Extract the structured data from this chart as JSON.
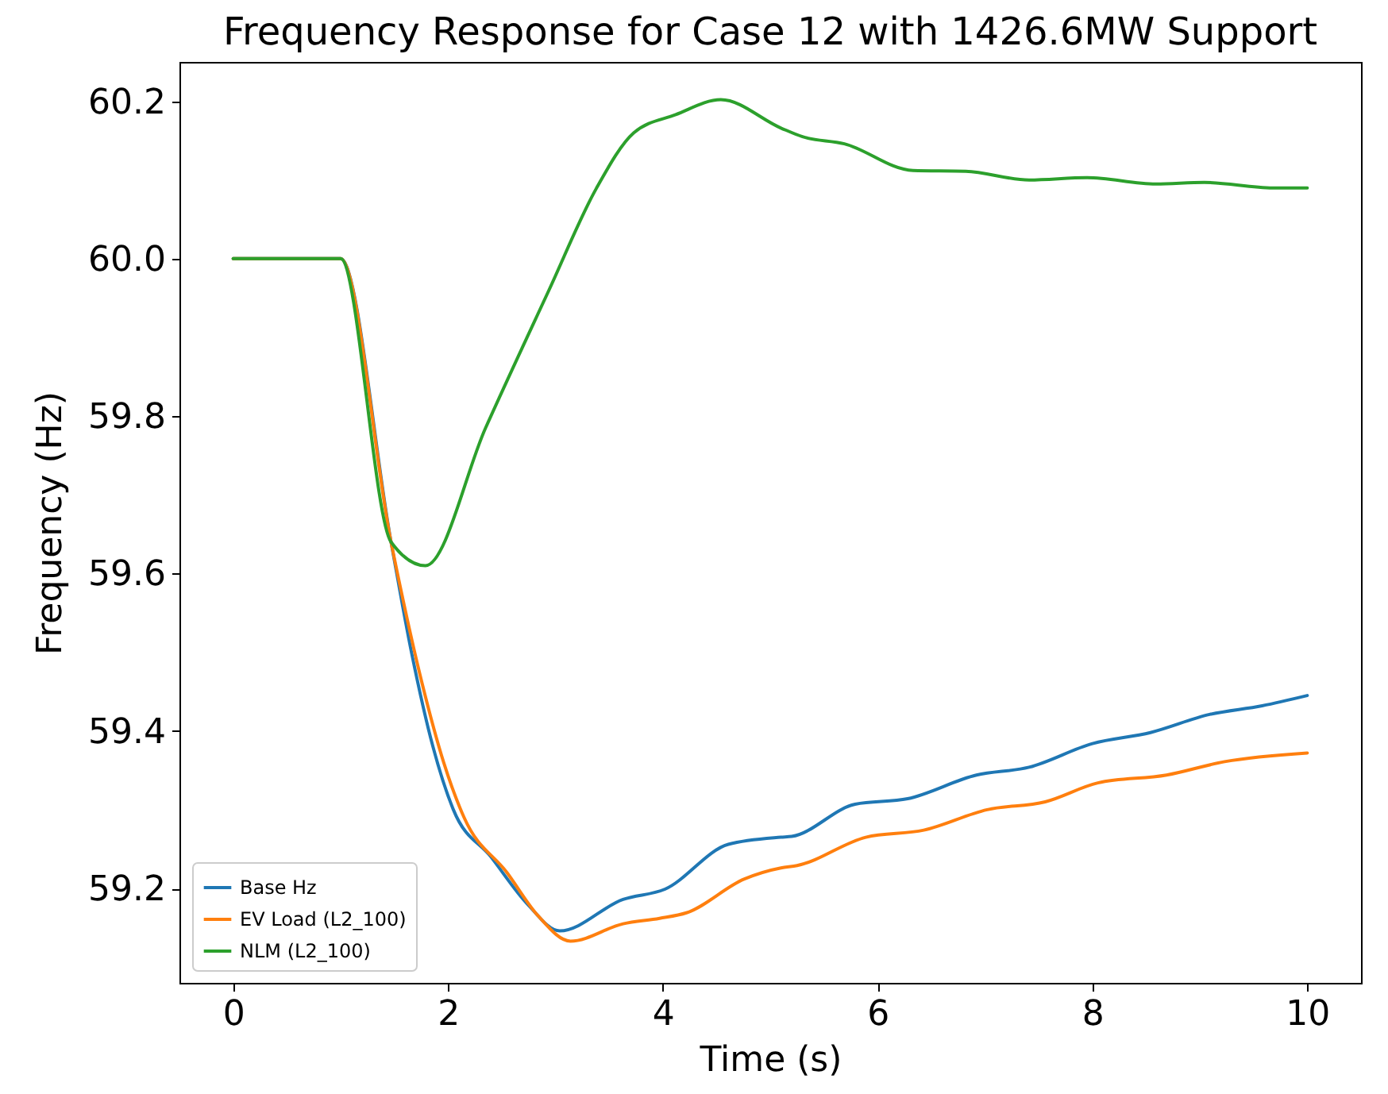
{
  "chart_data": {
    "type": "line",
    "title": "Frequency Response for Case 12 with 1426.6MW Support",
    "xlabel": "Time (s)",
    "ylabel": "Frequency (Hz)",
    "xlim": [
      -0.5,
      10.5
    ],
    "xticks": [
      0,
      2,
      4,
      6,
      8,
      10
    ],
    "ylim": [
      59.08,
      60.25
    ],
    "yticks": [
      59.2,
      59.4,
      59.6,
      59.8,
      {
        "value": 60,
        "label": "60.0"
      },
      60.2
    ],
    "grid": false,
    "legend": "bottom left",
    "line_style": "solid",
    "marker": "none",
    "series": [
      {
        "name": "Base Hz",
        "color": "#1f77b4",
        "x": [
          0,
          1,
          1.47,
          1.66,
          1.86,
          2.05,
          2.4,
          2.74,
          3.04,
          3.63,
          4.02,
          4.61,
          5.1,
          5.2,
          5.79,
          6.28,
          6.92,
          7.41,
          8.0,
          8.54,
          9.09,
          9.58,
          10
        ],
        "values": [
          60,
          60,
          59.64,
          59.5,
          59.38,
          59.3,
          59.24,
          59.18,
          59.146,
          59.186,
          59.199,
          59.256,
          59.265,
          59.266,
          59.307,
          59.314,
          59.344,
          59.354,
          59.384,
          59.398,
          59.421,
          59.432,
          59.445
        ]
      },
      {
        "name": "EV Load (L2_100)",
        "color": "#ff7f0e",
        "x": [
          0,
          1,
          1.47,
          1.76,
          1.96,
          2.15,
          2.55,
          2.84,
          3.14,
          3.63,
          3.97,
          4.22,
          4.76,
          5.1,
          5.25,
          5.89,
          6.43,
          7.02,
          7.56,
          8.05,
          8.69,
          9.23,
          10
        ],
        "values": [
          60,
          60,
          59.64,
          59.46,
          59.36,
          59.29,
          59.22,
          59.165,
          59.133,
          59.155,
          59.162,
          59.169,
          59.212,
          59.226,
          59.229,
          59.265,
          59.274,
          59.3,
          59.31,
          59.334,
          59.344,
          59.361,
          59.372
        ]
      },
      {
        "name": "NLM (L2_100)",
        "color": "#2ca02c",
        "x": [
          0,
          1,
          1.47,
          1.79,
          2.35,
          2.94,
          3.38,
          3.73,
          4.12,
          4.54,
          5.1,
          5.3,
          5.69,
          6.33,
          6.82,
          7.41,
          7.95,
          8.59,
          9.04,
          9.68,
          10
        ],
        "values": [
          60,
          60,
          59.64,
          59.61,
          59.785,
          59.96,
          60.089,
          60.16,
          60.183,
          60.202,
          60.166,
          60.155,
          60.146,
          60.112,
          60.111,
          60.1,
          60.103,
          60.095,
          60.097,
          60.09,
          60.09
        ]
      }
    ]
  }
}
